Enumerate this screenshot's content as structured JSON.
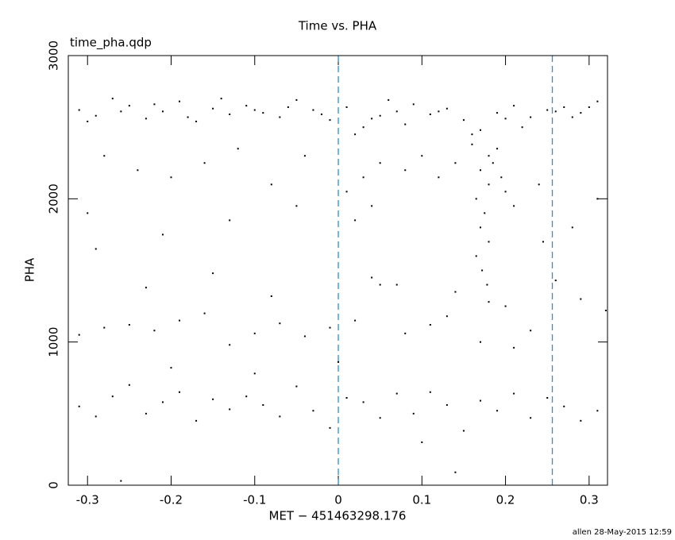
{
  "chart_data": {
    "type": "scatter",
    "title": "Time vs. PHA",
    "subtitle": "time_pha.qdp",
    "x_label": "MET − 451463298.176",
    "y_label": "PHA",
    "footer": "allen 28-May-2015 12:59",
    "xlim": [
      -0.323,
      0.322
    ],
    "ylim": [
      0,
      3000
    ],
    "xticks": [
      -0.3,
      -0.2,
      -0.1,
      0,
      0.1,
      0.2,
      0.3
    ],
    "yticks": [
      0,
      1000,
      2000,
      3000
    ],
    "vlines": [
      0,
      0.256
    ],
    "vline_color": "#2a8fd6",
    "series": [
      {
        "color": "#000000",
        "x": [
          -0.31,
          -0.29,
          -0.27,
          -0.25,
          -0.23,
          -0.21,
          -0.19,
          -0.17,
          -0.15,
          -0.13,
          -0.11,
          -0.09,
          -0.07,
          -0.05,
          -0.03,
          -0.01,
          0.01,
          0.03,
          0.05,
          0.07,
          0.09,
          0.11,
          0.13,
          0.15,
          0.17,
          0.19,
          0.21,
          0.23,
          0.25,
          0.27,
          0.29,
          0.31,
          -0.3,
          -0.26,
          -0.22,
          -0.18,
          -0.14,
          -0.1,
          -0.06,
          -0.02,
          0.02,
          0.04,
          0.06,
          0.08,
          0.12,
          0.16,
          0.18,
          0.2,
          0.22,
          0.26,
          0.28,
          0.3,
          0.16,
          0.17,
          0.18,
          0.19,
          0.165,
          0.175,
          0.185,
          0.195,
          0.17,
          0.18,
          0.165,
          0.172,
          0.178,
          0.2,
          0.21,
          0.03,
          0.01,
          0.05,
          0.02,
          0.04,
          -0.28,
          -0.24,
          -0.2,
          -0.16,
          -0.12,
          -0.08,
          -0.04,
          0.08,
          0.1,
          0.12,
          0.14,
          0.24,
          0.28,
          0.31,
          -0.3,
          -0.21,
          -0.13,
          -0.05,
          -0.31,
          -0.28,
          -0.25,
          -0.22,
          -0.19,
          -0.16,
          -0.13,
          -0.1,
          -0.07,
          -0.04,
          -0.01,
          0.02,
          0.05,
          0.08,
          0.11,
          0.14,
          0.17,
          0.2,
          0.23,
          0.26,
          0.29,
          0.32,
          -0.23,
          -0.15,
          -0.08,
          0.04,
          0.07,
          0.13,
          0.18,
          0.21,
          -0.31,
          -0.29,
          -0.27,
          -0.25,
          -0.23,
          -0.21,
          -0.19,
          -0.17,
          -0.15,
          -0.13,
          -0.11,
          -0.09,
          -0.07,
          -0.05,
          -0.03,
          -0.01,
          0.01,
          0.03,
          0.05,
          0.07,
          0.09,
          0.11,
          0.13,
          0.15,
          0.17,
          0.19,
          0.21,
          0.23,
          0.25,
          0.27,
          0.29,
          0.31,
          -0.26,
          0.14,
          -0.2,
          -0.1,
          0.0,
          0.1,
          -0.29,
          0.245
        ],
        "values": [
          2620,
          2580,
          2700,
          2650,
          2560,
          2610,
          2680,
          2540,
          2630,
          2590,
          2650,
          2600,
          2570,
          2690,
          2620,
          2550,
          2640,
          2500,
          2580,
          2610,
          2660,
          2590,
          2630,
          2550,
          2480,
          2600,
          2650,
          2570,
          2620,
          2640,
          2600,
          2680,
          2540,
          2610,
          2660,
          2570,
          2700,
          2620,
          2640,
          2590,
          2450,
          2560,
          2690,
          2520,
          2610,
          2380,
          2300,
          2560,
          2500,
          2610,
          2570,
          2640,
          2450,
          2200,
          2100,
          2350,
          2000,
          1900,
          2250,
          2150,
          1800,
          1700,
          1600,
          1500,
          1400,
          2050,
          1950,
          2150,
          2050,
          2250,
          1850,
          1950,
          2300,
          2200,
          2150,
          2250,
          2350,
          2100,
          2300,
          2200,
          2300,
          2150,
          2250,
          2100,
          1800,
          2000,
          1900,
          1750,
          1850,
          1950,
          1050,
          1100,
          1120,
          1080,
          1150,
          1200,
          980,
          1060,
          1130,
          1040,
          1100,
          1150,
          1400,
          1060,
          1120,
          1350,
          1000,
          1250,
          1080,
          1430,
          1300,
          1220,
          1380,
          1480,
          1320,
          1450,
          1400,
          1180,
          1280,
          960,
          550,
          480,
          620,
          700,
          500,
          580,
          650,
          450,
          600,
          530,
          620,
          560,
          480,
          690,
          520,
          400,
          610,
          580,
          470,
          640,
          500,
          650,
          560,
          380,
          590,
          520,
          640,
          470,
          610,
          550,
          450,
          520,
          30,
          90,
          820,
          780,
          860,
          300,
          1650,
          1700
        ]
      }
    ]
  }
}
